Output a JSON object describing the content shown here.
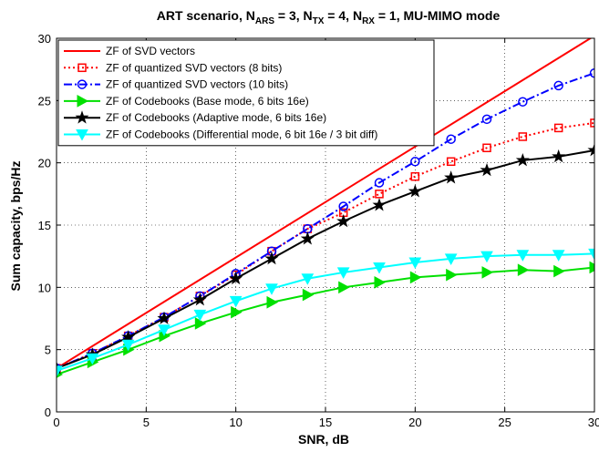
{
  "chart_data": {
    "type": "line",
    "title": {
      "prefix": "ART scenario, N",
      "sub1": "ARS",
      "part2": " = 3, N",
      "sub2": "TX",
      "part3": " = 4, N",
      "sub3": "RX",
      "suffix": " = 1, MU-MIMO mode"
    },
    "xlabel": "SNR, dB",
    "ylabel": "Sum capacity, bps/Hz",
    "xlim": [
      0,
      30
    ],
    "ylim": [
      0,
      30
    ],
    "xticks": [
      0,
      5,
      10,
      15,
      20,
      25,
      30
    ],
    "yticks": [
      0,
      5,
      10,
      15,
      20,
      25,
      30
    ],
    "grid": true,
    "legend_position": "top-left",
    "series": [
      {
        "name": "ZF of SVD vectors",
        "color": "#ff0000",
        "dash": "solid",
        "marker": "none",
        "x": [
          0,
          30
        ],
        "y": [
          3.5,
          30.2
        ]
      },
      {
        "name": "ZF of quantized SVD vectors (8 bits)",
        "color": "#ff0000",
        "dash": "dotted",
        "marker": "square",
        "x": [
          0,
          2,
          4,
          6,
          8,
          10,
          12,
          14,
          16,
          18,
          20,
          22,
          24,
          26,
          28,
          30
        ],
        "y": [
          3.5,
          4.7,
          6.1,
          7.6,
          9.3,
          11.0,
          12.9,
          14.7,
          16.0,
          17.5,
          18.9,
          20.1,
          21.2,
          22.1,
          22.8,
          23.2
        ]
      },
      {
        "name": "ZF of quantized SVD vectors (10 bits)",
        "color": "#0000ff",
        "dash": "dashdot",
        "marker": "circle",
        "x": [
          0,
          2,
          4,
          6,
          8,
          10,
          12,
          14,
          16,
          18,
          20,
          22,
          24,
          26,
          28,
          30
        ],
        "y": [
          3.5,
          4.7,
          6.1,
          7.6,
          9.3,
          11.1,
          12.9,
          14.7,
          16.5,
          18.4,
          20.1,
          21.9,
          23.5,
          24.9,
          26.2,
          27.2
        ]
      },
      {
        "name": "ZF of Codebooks (Base mode, 6 bits 16e)",
        "color": "#00e000",
        "dash": "solid",
        "marker": "triangle-right",
        "x": [
          0,
          2,
          4,
          6,
          8,
          10,
          12,
          14,
          16,
          18,
          20,
          22,
          24,
          26,
          28,
          30
        ],
        "y": [
          3.0,
          4.0,
          5.0,
          6.1,
          7.1,
          8.0,
          8.8,
          9.4,
          10.0,
          10.4,
          10.8,
          11.0,
          11.2,
          11.4,
          11.3,
          11.6
        ]
      },
      {
        "name": "ZF of Codebooks (Adaptive mode, 6 bits 16e)",
        "color": "#000000",
        "dash": "solid",
        "marker": "star",
        "x": [
          0,
          2,
          4,
          6,
          8,
          10,
          12,
          14,
          16,
          18,
          20,
          22,
          24,
          26,
          28,
          30
        ],
        "y": [
          3.5,
          4.6,
          6.0,
          7.5,
          9.0,
          10.7,
          12.3,
          13.9,
          15.3,
          16.6,
          17.7,
          18.8,
          19.4,
          20.2,
          20.5,
          21.0
        ]
      },
      {
        "name": "ZF of Codebooks (Differential mode, 6 bit 16e / 3 bit diff)",
        "color": "#00ffff",
        "dash": "solid",
        "marker": "triangle-down",
        "x": [
          0,
          2,
          4,
          6,
          8,
          10,
          12,
          14,
          16,
          18,
          20,
          22,
          24,
          26,
          28,
          30
        ],
        "y": [
          3.3,
          4.3,
          5.4,
          6.6,
          7.8,
          8.9,
          9.9,
          10.7,
          11.2,
          11.6,
          12.0,
          12.3,
          12.5,
          12.6,
          12.6,
          12.7
        ]
      }
    ]
  }
}
